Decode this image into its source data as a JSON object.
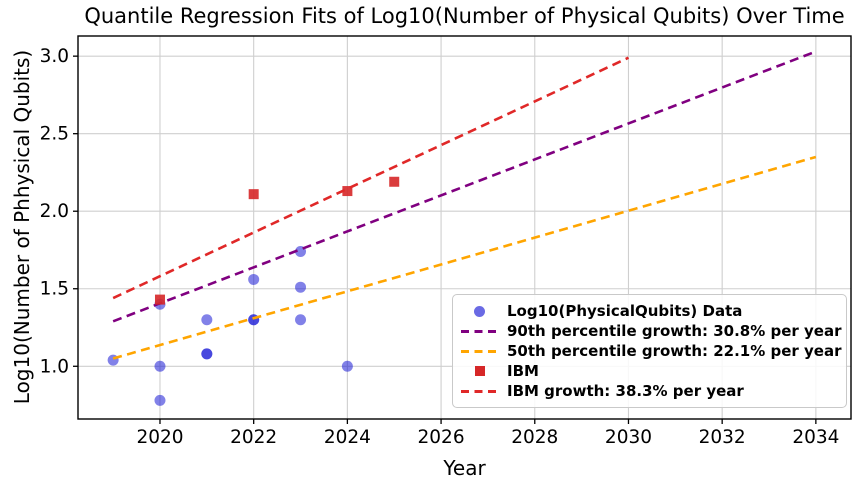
{
  "chart_data": {
    "type": "scatter",
    "title": "Quantile Regression Fits of Log10(Number of Physical Qubits) Over Time",
    "xlabel": "Year",
    "ylabel": "Log10(Number of Phhysical Qubits)",
    "xlim": [
      2018.25,
      2034.75
    ],
    "ylim": [
      0.66,
      3.13
    ],
    "x_ticks": [
      2020,
      2022,
      2024,
      2026,
      2028,
      2030,
      2032,
      2034
    ],
    "y_ticks": [
      1.0,
      1.5,
      2.0,
      2.5,
      3.0
    ],
    "grid": true,
    "legend_position": "lower right",
    "colors": {
      "data_scatter": "#1a1ad6",
      "p90_line": "#800080",
      "p50_line": "#ffa500",
      "ibm_scatter": "#d62728",
      "ibm_line": "#e02828",
      "gridline": "#cfcfcf",
      "spine": "#000000"
    },
    "series": [
      {
        "name": "Log10(PhysicalQubits) Data",
        "kind": "scatter",
        "marker": "circle",
        "color": "#1a1ad6",
        "alpha": 0.55,
        "points": [
          [
            2019,
            1.04
          ],
          [
            2020,
            1.4
          ],
          [
            2020,
            1.0
          ],
          [
            2020,
            0.78
          ],
          [
            2021,
            1.3
          ],
          [
            2021,
            1.08
          ],
          [
            2021,
            1.08
          ],
          [
            2022,
            1.56
          ],
          [
            2022,
            1.3
          ],
          [
            2022,
            1.3
          ],
          [
            2023,
            1.74
          ],
          [
            2023,
            1.51
          ],
          [
            2023,
            1.3
          ],
          [
            2024,
            1.0
          ]
        ]
      },
      {
        "name": "90th percentile growth: 30.8% per year",
        "kind": "line",
        "style": "dashed",
        "color": "#800080",
        "points": [
          [
            2019,
            1.29
          ],
          [
            2034,
            3.03
          ]
        ]
      },
      {
        "name": "50th percentile growth: 22.1% per year",
        "kind": "line",
        "style": "dashed",
        "color": "#ffa500",
        "points": [
          [
            2019,
            1.05
          ],
          [
            2034,
            2.35
          ]
        ]
      },
      {
        "name": "IBM",
        "kind": "scatter",
        "marker": "square",
        "color": "#d62728",
        "alpha": 0.9,
        "points": [
          [
            2020,
            1.43
          ],
          [
            2022,
            2.11
          ],
          [
            2024,
            2.13
          ],
          [
            2025,
            2.19
          ]
        ]
      },
      {
        "name": "IBM growth: 38.3% per year",
        "kind": "line",
        "style": "dashed",
        "color": "#e02828",
        "points": [
          [
            2019,
            1.44
          ],
          [
            2030,
            2.99
          ]
        ]
      }
    ]
  }
}
